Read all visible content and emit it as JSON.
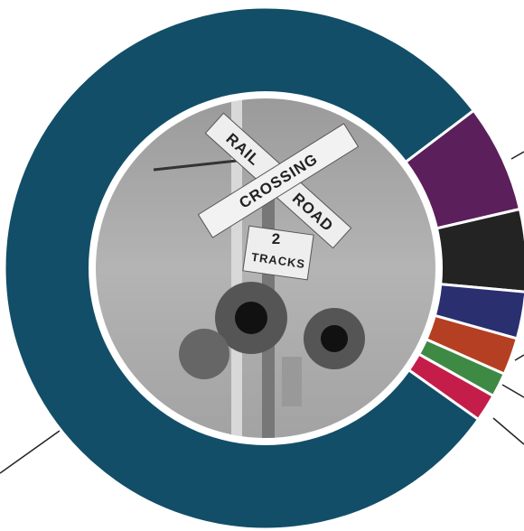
{
  "chart_data": {
    "type": "donut",
    "values": [
      80,
      6.7,
      5.1,
      2.9,
      2.3,
      1.5,
      1.7
    ],
    "colors": [
      "#124e68",
      "#5b1f5b",
      "#232323",
      "#2a2f70",
      "#b53f22",
      "#3e8a45",
      "#c51d4a"
    ]
  },
  "image_text": [
    "RAIL",
    "ROAD",
    "CROSSING",
    "2",
    "TRACKS"
  ]
}
